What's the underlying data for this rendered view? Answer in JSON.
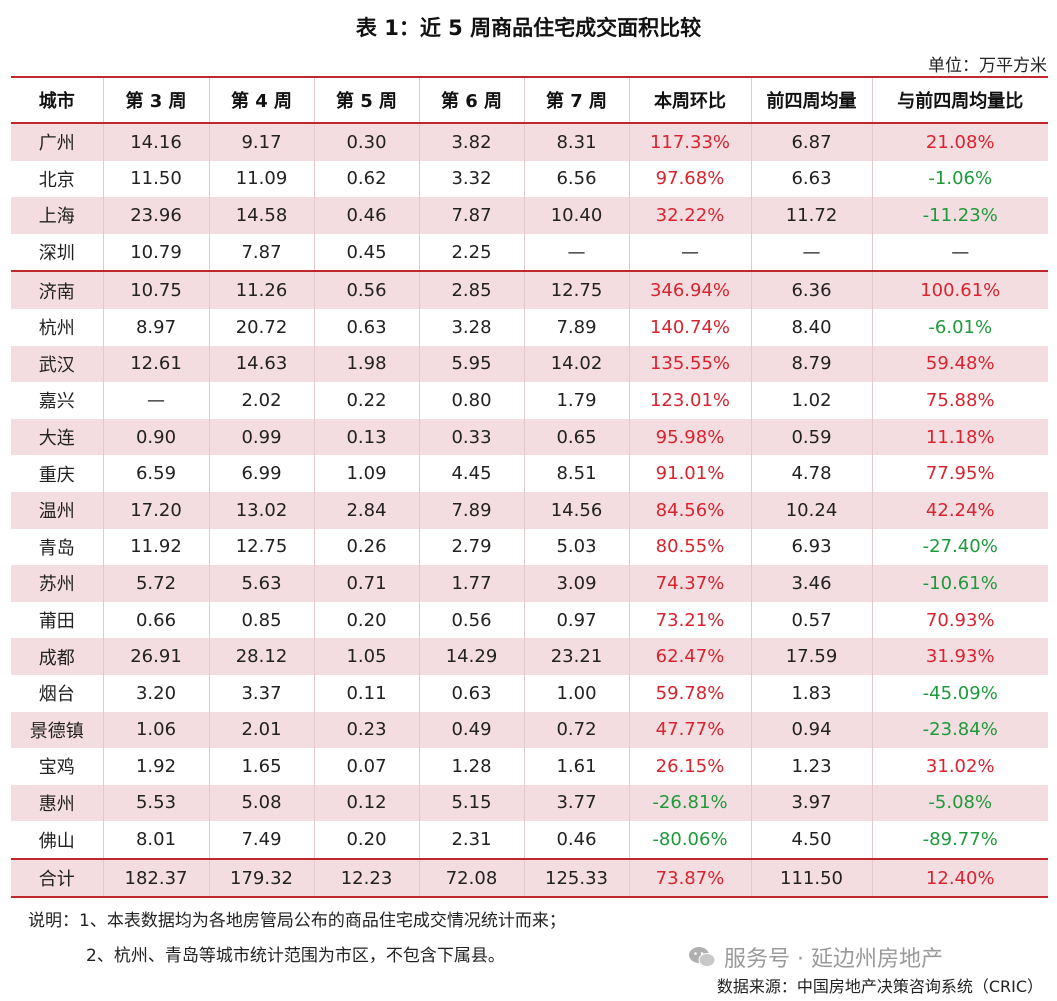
{
  "title": "表 1：近 5 周商品住宅成交面积比较",
  "unit": "单位：万平方米",
  "headers": [
    "城市",
    "第 3 周",
    "第 4 周",
    "第 5 周",
    "第 6 周",
    "第 7 周",
    "本周环比",
    "前四周均量",
    "与前四周均量比"
  ],
  "rows": [
    {
      "city": "广州",
      "w3": "14.16",
      "w4": "9.17",
      "w5": "0.30",
      "w6": "3.82",
      "w7": "8.31",
      "mom": "117.33%",
      "avg4": "6.87",
      "vsavg": "21.08%"
    },
    {
      "city": "北京",
      "w3": "11.50",
      "w4": "11.09",
      "w5": "0.62",
      "w6": "3.32",
      "w7": "6.56",
      "mom": "97.68%",
      "avg4": "6.63",
      "vsavg": "-1.06%"
    },
    {
      "city": "上海",
      "w3": "23.96",
      "w4": "14.58",
      "w5": "0.46",
      "w6": "7.87",
      "w7": "10.40",
      "mom": "32.22%",
      "avg4": "11.72",
      "vsavg": "-11.23%"
    },
    {
      "city": "深圳",
      "w3": "10.79",
      "w4": "7.87",
      "w5": "0.45",
      "w6": "2.25",
      "w7": "—",
      "mom": "—",
      "avg4": "—",
      "vsavg": "—"
    },
    {
      "city": "济南",
      "w3": "10.75",
      "w4": "11.26",
      "w5": "0.56",
      "w6": "2.85",
      "w7": "12.75",
      "mom": "346.94%",
      "avg4": "6.36",
      "vsavg": "100.61%"
    },
    {
      "city": "杭州",
      "w3": "8.97",
      "w4": "20.72",
      "w5": "0.63",
      "w6": "3.28",
      "w7": "7.89",
      "mom": "140.74%",
      "avg4": "8.40",
      "vsavg": "-6.01%"
    },
    {
      "city": "武汉",
      "w3": "12.61",
      "w4": "14.63",
      "w5": "1.98",
      "w6": "5.95",
      "w7": "14.02",
      "mom": "135.55%",
      "avg4": "8.79",
      "vsavg": "59.48%"
    },
    {
      "city": "嘉兴",
      "w3": "—",
      "w4": "2.02",
      "w5": "0.22",
      "w6": "0.80",
      "w7": "1.79",
      "mom": "123.01%",
      "avg4": "1.02",
      "vsavg": "75.88%"
    },
    {
      "city": "大连",
      "w3": "0.90",
      "w4": "0.99",
      "w5": "0.13",
      "w6": "0.33",
      "w7": "0.65",
      "mom": "95.98%",
      "avg4": "0.59",
      "vsavg": "11.18%"
    },
    {
      "city": "重庆",
      "w3": "6.59",
      "w4": "6.99",
      "w5": "1.09",
      "w6": "4.45",
      "w7": "8.51",
      "mom": "91.01%",
      "avg4": "4.78",
      "vsavg": "77.95%"
    },
    {
      "city": "温州",
      "w3": "17.20",
      "w4": "13.02",
      "w5": "2.84",
      "w6": "7.89",
      "w7": "14.56",
      "mom": "84.56%",
      "avg4": "10.24",
      "vsavg": "42.24%"
    },
    {
      "city": "青岛",
      "w3": "11.92",
      "w4": "12.75",
      "w5": "0.26",
      "w6": "2.79",
      "w7": "5.03",
      "mom": "80.55%",
      "avg4": "6.93",
      "vsavg": "-27.40%"
    },
    {
      "city": "苏州",
      "w3": "5.72",
      "w4": "5.63",
      "w5": "0.71",
      "w6": "1.77",
      "w7": "3.09",
      "mom": "74.37%",
      "avg4": "3.46",
      "vsavg": "-10.61%"
    },
    {
      "city": "莆田",
      "w3": "0.66",
      "w4": "0.85",
      "w5": "0.20",
      "w6": "0.56",
      "w7": "0.97",
      "mom": "73.21%",
      "avg4": "0.57",
      "vsavg": "70.93%"
    },
    {
      "city": "成都",
      "w3": "26.91",
      "w4": "28.12",
      "w5": "1.05",
      "w6": "14.29",
      "w7": "23.21",
      "mom": "62.47%",
      "avg4": "17.59",
      "vsavg": "31.93%"
    },
    {
      "city": "烟台",
      "w3": "3.20",
      "w4": "3.37",
      "w5": "0.11",
      "w6": "0.63",
      "w7": "1.00",
      "mom": "59.78%",
      "avg4": "1.83",
      "vsavg": "-45.09%"
    },
    {
      "city": "景德镇",
      "w3": "1.06",
      "w4": "2.01",
      "w5": "0.23",
      "w6": "0.49",
      "w7": "0.72",
      "mom": "47.77%",
      "avg4": "0.94",
      "vsavg": "-23.84%"
    },
    {
      "city": "宝鸡",
      "w3": "1.92",
      "w4": "1.65",
      "w5": "0.07",
      "w6": "1.28",
      "w7": "1.61",
      "mom": "26.15%",
      "avg4": "1.23",
      "vsavg": "31.02%"
    },
    {
      "city": "惠州",
      "w3": "5.53",
      "w4": "5.08",
      "w5": "0.12",
      "w6": "5.15",
      "w7": "3.77",
      "mom": "-26.81%",
      "avg4": "3.97",
      "vsavg": "-5.08%"
    },
    {
      "city": "佛山",
      "w3": "8.01",
      "w4": "7.49",
      "w5": "0.20",
      "w6": "2.31",
      "w7": "0.46",
      "mom": "-80.06%",
      "avg4": "4.50",
      "vsavg": "-89.77%"
    }
  ],
  "total": {
    "city": "合计",
    "w3": "182.37",
    "w4": "179.32",
    "w5": "12.23",
    "w6": "72.08",
    "w7": "125.33",
    "mom": "73.87%",
    "avg4": "111.50",
    "vsavg": "12.40%"
  },
  "notes": {
    "line1": "说明：1、本表数据均为各地房管局公布的商品住宅成交情况统计而来；",
    "line2": "2、杭州、青岛等城市统计范围为市区，不包含下属县。"
  },
  "watermark": "服务号 · 延边州房地产",
  "source": "数据来源：中国房地产决策咨询系统（CRIC）",
  "colors": {
    "positive": "#d9232e",
    "negative": "#1d9a3a",
    "rule": "#c0282d",
    "band": "#f4dde0"
  }
}
